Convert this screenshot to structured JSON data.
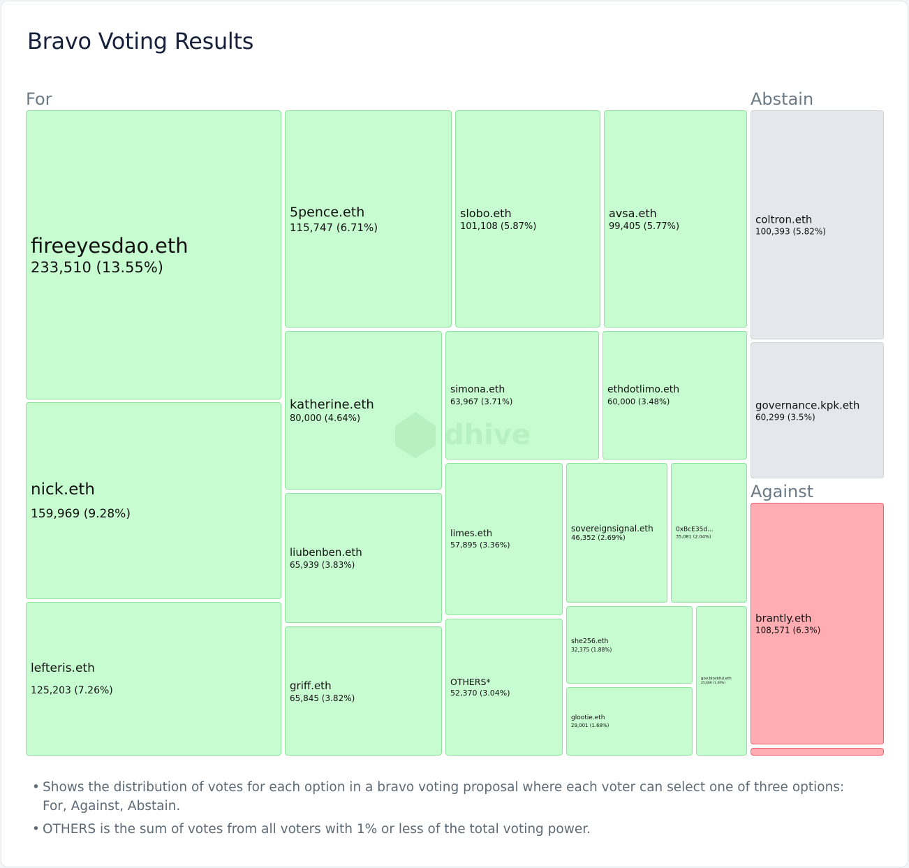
{
  "title": "Bravo Voting Results",
  "watermark": "dhive",
  "colors": {
    "For": {
      "fill": "#c7fbd0",
      "border": "#8ee49d"
    },
    "Abstain": {
      "fill": "#e6e7ec",
      "border": "#cfd1d8"
    },
    "Against": {
      "fill": "#ffacb3",
      "border": "#f0606e"
    }
  },
  "notes": [
    "Shows the distribution of votes for each option in a bravo voting proposal where each voter can select one of three options: For, Against, Abstain.",
    "OTHERS is the sum of votes from all voters with 1% or less of the total voting power."
  ],
  "chart_data": {
    "type": "treemap",
    "title": "Bravo Voting Results",
    "groups": [
      {
        "name": "For",
        "items": [
          {
            "label": "fireeyesdao.eth",
            "value": 233510,
            "value_text": "233,510 (13.55%)"
          },
          {
            "label": "nick.eth",
            "value": 159969,
            "value_text": "159,969 (9.28%)"
          },
          {
            "label": "lefteris.eth",
            "value": 125203,
            "value_text": "125,203 (7.26%)"
          },
          {
            "label": "5pence.eth",
            "value": 115747,
            "value_text": "115,747 (6.71%)"
          },
          {
            "label": "slobo.eth",
            "value": 101108,
            "value_text": "101,108 (5.87%)"
          },
          {
            "label": "avsa.eth",
            "value": 99405,
            "value_text": "99,405 (5.77%)"
          },
          {
            "label": "katherine.eth",
            "value": 80000,
            "value_text": "80,000 (4.64%)"
          },
          {
            "label": "simona.eth",
            "value": 63967,
            "value_text": "63,967 (3.71%)"
          },
          {
            "label": "ethdotlimo.eth",
            "value": 60000,
            "value_text": "60,000 (3.48%)"
          },
          {
            "label": "liubenben.eth",
            "value": 65939,
            "value_text": "65,939 (3.83%)"
          },
          {
            "label": "griff.eth",
            "value": 65845,
            "value_text": "65,845 (3.82%)"
          },
          {
            "label": "limes.eth",
            "value": 57895,
            "value_text": "57,895 (3.36%)"
          },
          {
            "label": "sovereignsignal.eth",
            "value": 46352,
            "value_text": "46,352 (2.69%)"
          },
          {
            "label": "0xBcE35d...",
            "value": 35081,
            "value_text": "35,081 (2.04%)"
          },
          {
            "label": "OTHERS*",
            "value": 52370,
            "value_text": "52,370 (3.04%)"
          },
          {
            "label": "she256.eth",
            "value": 32375,
            "value_text": "32,375 (1.88%)"
          },
          {
            "label": "glootie.eth",
            "value": 29001,
            "value_text": "29,001 (1.68%)"
          },
          {
            "label": "gov.blockful.eth",
            "value": 25666,
            "value_text": "25,666 (1.49%)"
          }
        ]
      },
      {
        "name": "Abstain",
        "items": [
          {
            "label": "coltron.eth",
            "value": 100393,
            "value_text": "100,393 (5.82%)"
          },
          {
            "label": "governance.kpk.eth",
            "value": 60299,
            "value_text": "60,299 (3.5%)"
          }
        ]
      },
      {
        "name": "Against",
        "items": [
          {
            "label": "brantly.eth",
            "value": 108571,
            "value_text": "108,571 (6.3%)"
          },
          {
            "label": "",
            "value": null,
            "value_text": ""
          }
        ]
      }
    ]
  }
}
